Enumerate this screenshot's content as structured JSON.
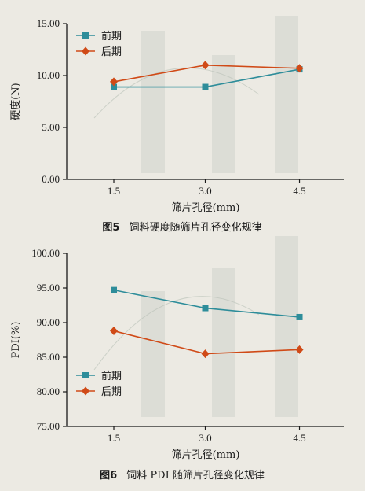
{
  "chart_data": [
    {
      "type": "line",
      "categories": [
        "1.5",
        "3.0",
        "4.5"
      ],
      "series": [
        {
          "name": "前期",
          "values": [
            8.9,
            8.9,
            10.6
          ],
          "color": "#2e8d9a",
          "marker": "square"
        },
        {
          "name": "后期",
          "values": [
            9.4,
            11.0,
            10.7
          ],
          "color": "#d04a17",
          "marker": "diamond"
        }
      ],
      "ylabel": "硬度(N)",
      "xlabel": "筛片孔径(mm)",
      "yticks": [
        "0.00",
        "5.00",
        "10.00",
        "15.00"
      ],
      "ylim": [
        0,
        15
      ],
      "grid": false,
      "legend": "top-left",
      "caption_num": "图5",
      "caption_text": "饲料硬度随筛片孔径变化规律"
    },
    {
      "type": "line",
      "categories": [
        "1.5",
        "3.0",
        "4.5"
      ],
      "series": [
        {
          "name": "前期",
          "values": [
            94.7,
            92.1,
            90.8
          ],
          "color": "#2e8d9a",
          "marker": "square"
        },
        {
          "name": "后期",
          "values": [
            88.8,
            85.5,
            86.1
          ],
          "color": "#d04a17",
          "marker": "diamond"
        }
      ],
      "ylabel": "PDI(%)",
      "xlabel": "筛片孔径(mm)",
      "yticks": [
        "75.00",
        "80.00",
        "85.00",
        "90.00",
        "95.00",
        "100.00"
      ],
      "ylim": [
        75,
        100
      ],
      "grid": false,
      "legend": "bottom-left",
      "caption_num": "图6",
      "caption_text": "饲料 PDI 随筛片孔径变化规律"
    }
  ],
  "colors": {
    "early": "#2e8d9a",
    "late": "#d04a17",
    "axis": "#1a1a1a",
    "background": "#eceae3"
  }
}
